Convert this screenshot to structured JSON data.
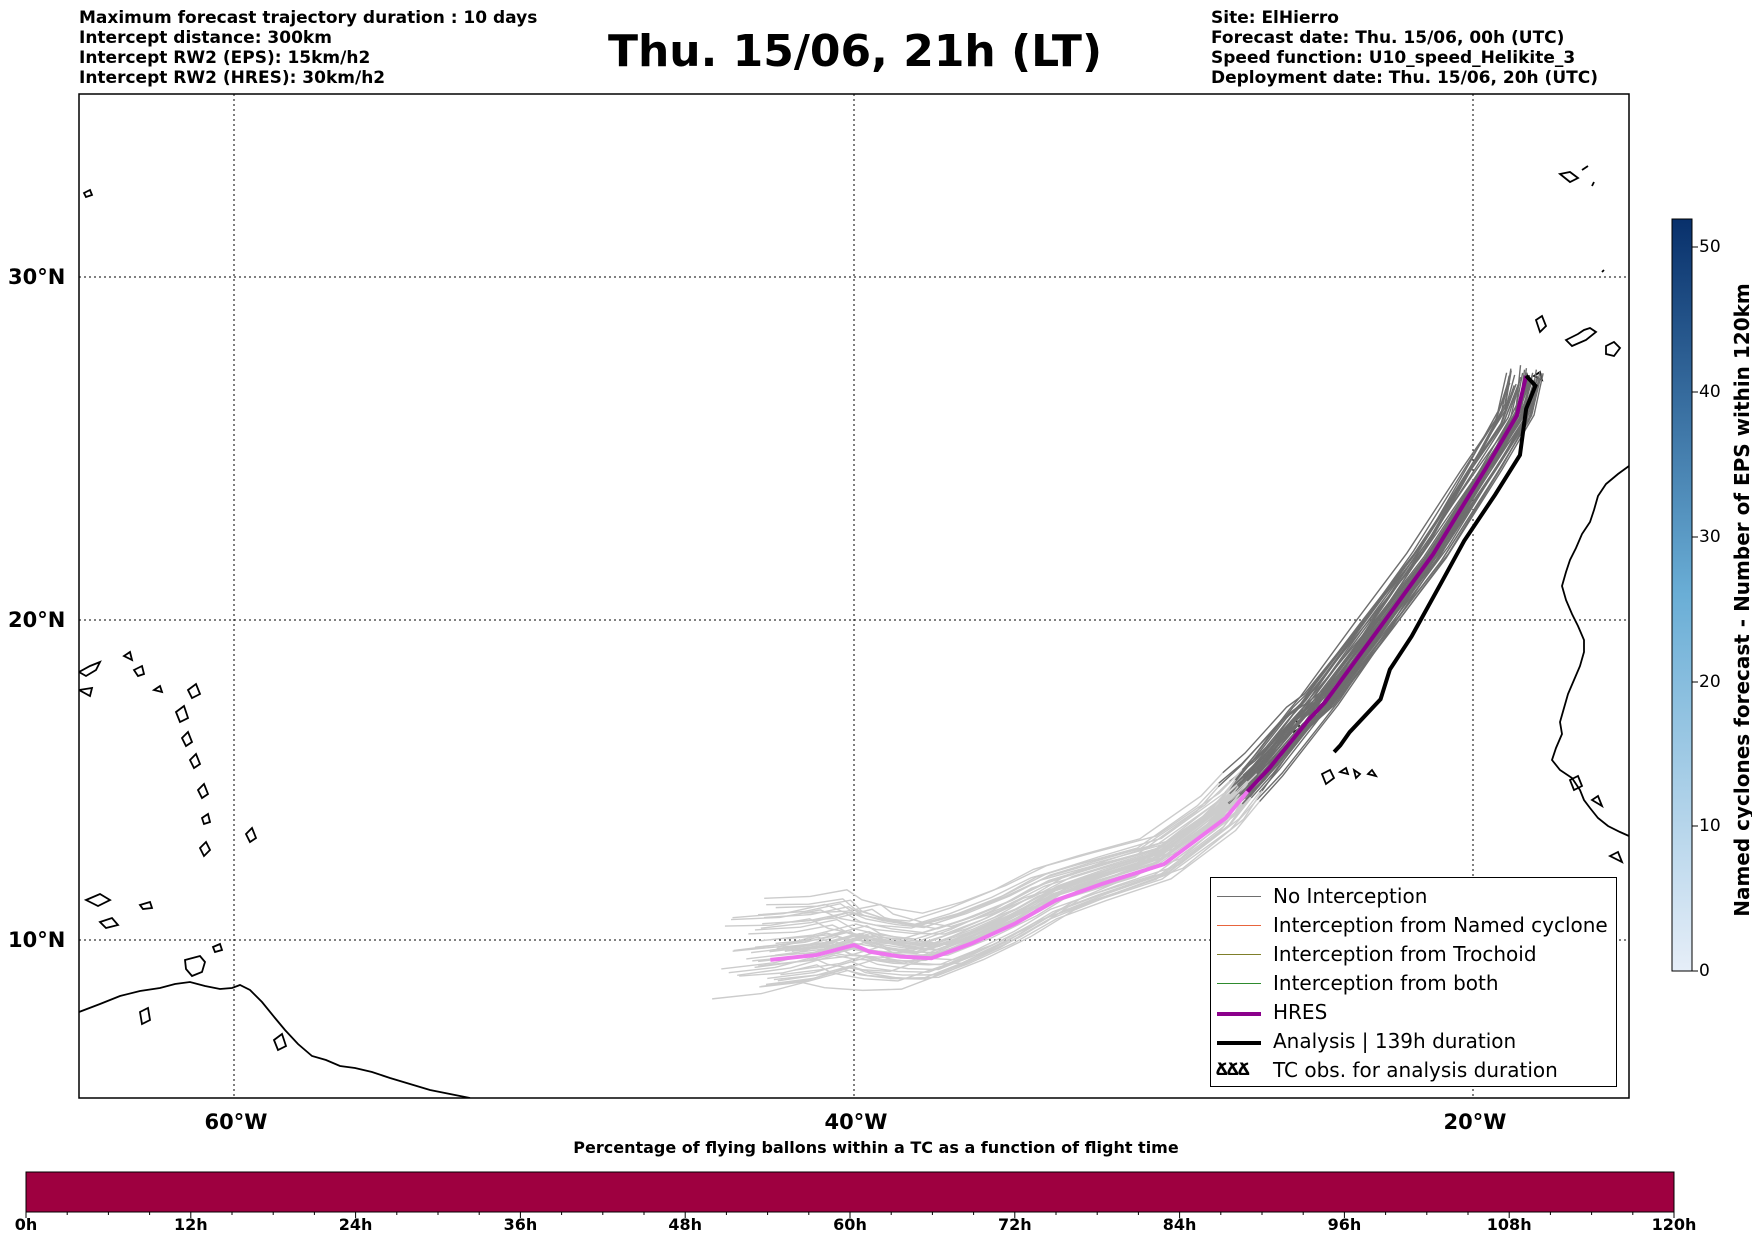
{
  "header": {
    "title": "Thu. 15/06, 21h (LT)",
    "left_lines": [
      "Maximum forecast trajectory duration : 10 days",
      "Intercept distance: 300km",
      "Intercept RW2 (EPS):  15km/h2",
      "Intercept RW2 (HRES): 30km/h2"
    ],
    "right_lines": [
      "Site: ElHierro",
      "Forecast date: Thu. 15/06, 00h (UTC)",
      "Speed function: U10_speed_Helikite_3",
      "Deployment date: Thu. 15/06, 20h (UTC)"
    ]
  },
  "map": {
    "lon_range": [
      -65,
      15
    ],
    "lat_range": [
      5,
      35
    ],
    "lat_ticks": [
      "30°N",
      "20°N",
      "10°N"
    ],
    "lon_ticks": [
      "60°W",
      "40°W",
      "20°W"
    ],
    "grid": "dotted",
    "colors": {
      "no_interception": "#6e6e6e",
      "no_interception_late": "#cccccc",
      "named_cyclone": "#e8643c",
      "trochoid": "#7f7f2a",
      "both": "#2e8b2e",
      "hres": "#8b008b",
      "hres_late": "#ee76ee",
      "analysis": "#000000"
    }
  },
  "legend": {
    "placement": "bottom-right",
    "items": [
      {
        "label": "No Interception",
        "icon": "gray-line"
      },
      {
        "label": "Interception from Named cyclone",
        "icon": "orange-line"
      },
      {
        "label": "Interception from Trochoid",
        "icon": "olive-line"
      },
      {
        "label": "Interception from both",
        "icon": "green-line"
      },
      {
        "label": "HRES",
        "icon": "purple-thick-line"
      },
      {
        "label": "Analysis | 139h duration",
        "icon": "black-thick-line"
      },
      {
        "label": "TC obs. for analysis duration",
        "icon": "storm-symbols-icon",
        "symbols": "ՃՃՃ"
      }
    ]
  },
  "colorbar": {
    "label": "Named cyclones forecast - Number of EPS within 120km",
    "ticks": [
      "0",
      "10",
      "20",
      "30",
      "40",
      "50"
    ],
    "range": [
      0,
      52
    ]
  },
  "progress_bar": {
    "title": "Percentage of flying ballons within a TC as a function of flight time",
    "hours": [
      "0h",
      "12h",
      "24h",
      "36h",
      "48h",
      "60h",
      "72h",
      "84h",
      "96h",
      "108h",
      "120h"
    ],
    "fill_color": "#9e0040",
    "percent_by_hour": []
  },
  "chart_data": {
    "type": "line",
    "title": "Thu. 15/06, 21h (LT)",
    "xlabel": "",
    "ylabel": "",
    "xlim": [
      -65,
      15
    ],
    "ylim": [
      5,
      35
    ],
    "series": [
      {
        "name": "HRES",
        "points": [
          [
            -18.3,
            27.4
          ],
          [
            -18.6,
            26.2
          ],
          [
            -19.6,
            24.6
          ],
          [
            -21.3,
            22.0
          ],
          [
            -23.0,
            19.8
          ],
          [
            -24.8,
            17.5
          ],
          [
            -25.3,
            17.0
          ],
          [
            -26.6,
            15.5
          ],
          [
            -27.3,
            14.8
          ],
          [
            -28.0,
            14.0
          ],
          [
            -30.0,
            12.6
          ],
          [
            -32.0,
            12.0
          ],
          [
            -33.5,
            11.5
          ],
          [
            -34.8,
            10.8
          ],
          [
            -36.2,
            10.2
          ],
          [
            -37.5,
            9.75
          ],
          [
            -38.5,
            9.8
          ],
          [
            -39.5,
            9.95
          ],
          [
            -40.0,
            10.15
          ],
          [
            -41.2,
            9.85
          ],
          [
            -42.7,
            9.7
          ]
        ]
      },
      {
        "name": "Analysis | 139h duration",
        "points": [
          [
            -18.3,
            27.4
          ],
          [
            -18.0,
            27.1
          ],
          [
            -18.3,
            26.4
          ],
          [
            -18.5,
            25.0
          ],
          [
            -19.3,
            23.8
          ],
          [
            -20.3,
            22.4
          ],
          [
            -21.0,
            21.2
          ],
          [
            -22.0,
            19.5
          ],
          [
            -22.7,
            18.5
          ],
          [
            -23.0,
            17.6
          ],
          [
            -24.0,
            16.6
          ],
          [
            -24.3,
            16.2
          ],
          [
            -24.5,
            16.0
          ]
        ]
      }
    ]
  }
}
